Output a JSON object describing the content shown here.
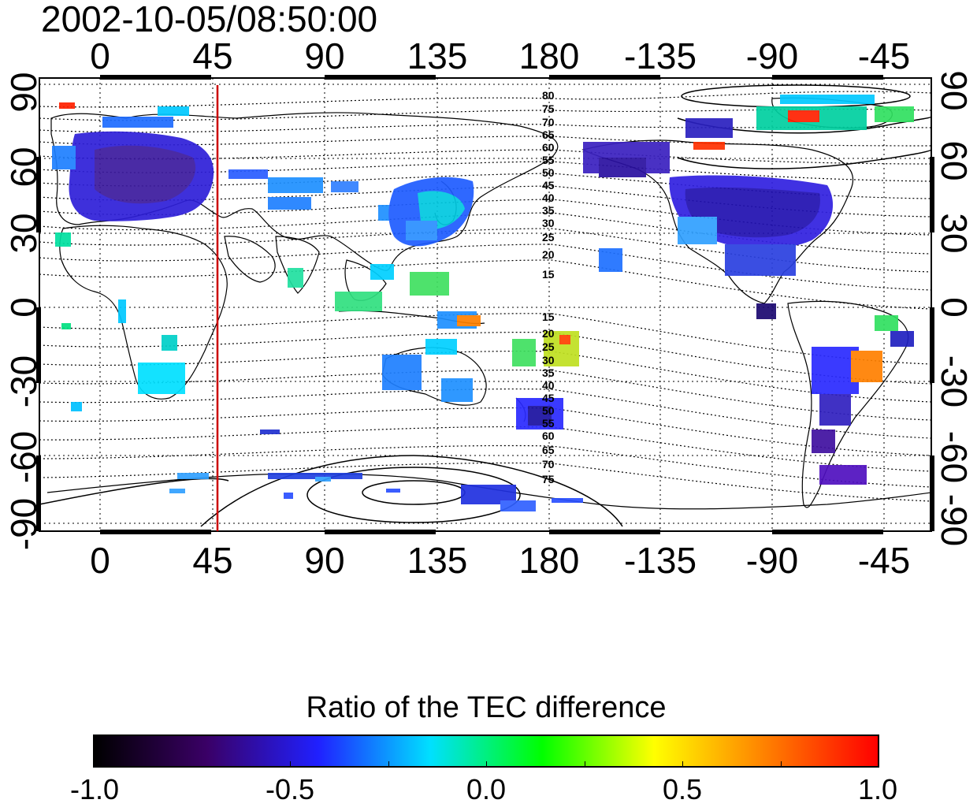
{
  "timestamp": "2002-10-05/08:50:00",
  "map": {
    "lon_labels": [
      "0",
      "45",
      "90",
      "135",
      "180",
      "-135",
      "-90",
      "-45"
    ],
    "lat_labels": [
      "90",
      "60",
      "30",
      "0",
      "-30",
      "-60",
      "-90"
    ],
    "contour_labels_north": [
      "80",
      "75",
      "70",
      "65",
      "60",
      "55",
      "50",
      "45",
      "40",
      "35",
      "30",
      "25",
      "20",
      "15"
    ],
    "contour_labels_south": [
      "15",
      "20",
      "25",
      "30",
      "35",
      "40",
      "45",
      "50",
      "55",
      "60",
      "65",
      "70",
      "75"
    ],
    "marker_line_color": "#cc0000",
    "background": "#ffffff"
  },
  "colorbar": {
    "title": "Ratio of the TEC difference",
    "tick_labels": [
      "-1.0",
      "-0.5",
      "0.0",
      "0.5",
      "1.0"
    ],
    "range": [
      -1.0,
      1.0
    ],
    "colors": [
      "#000000",
      "#3a0066",
      "#2020ff",
      "#00e0ff",
      "#00ff00",
      "#ffff00",
      "#ff8000",
      "#ff0000"
    ]
  }
}
